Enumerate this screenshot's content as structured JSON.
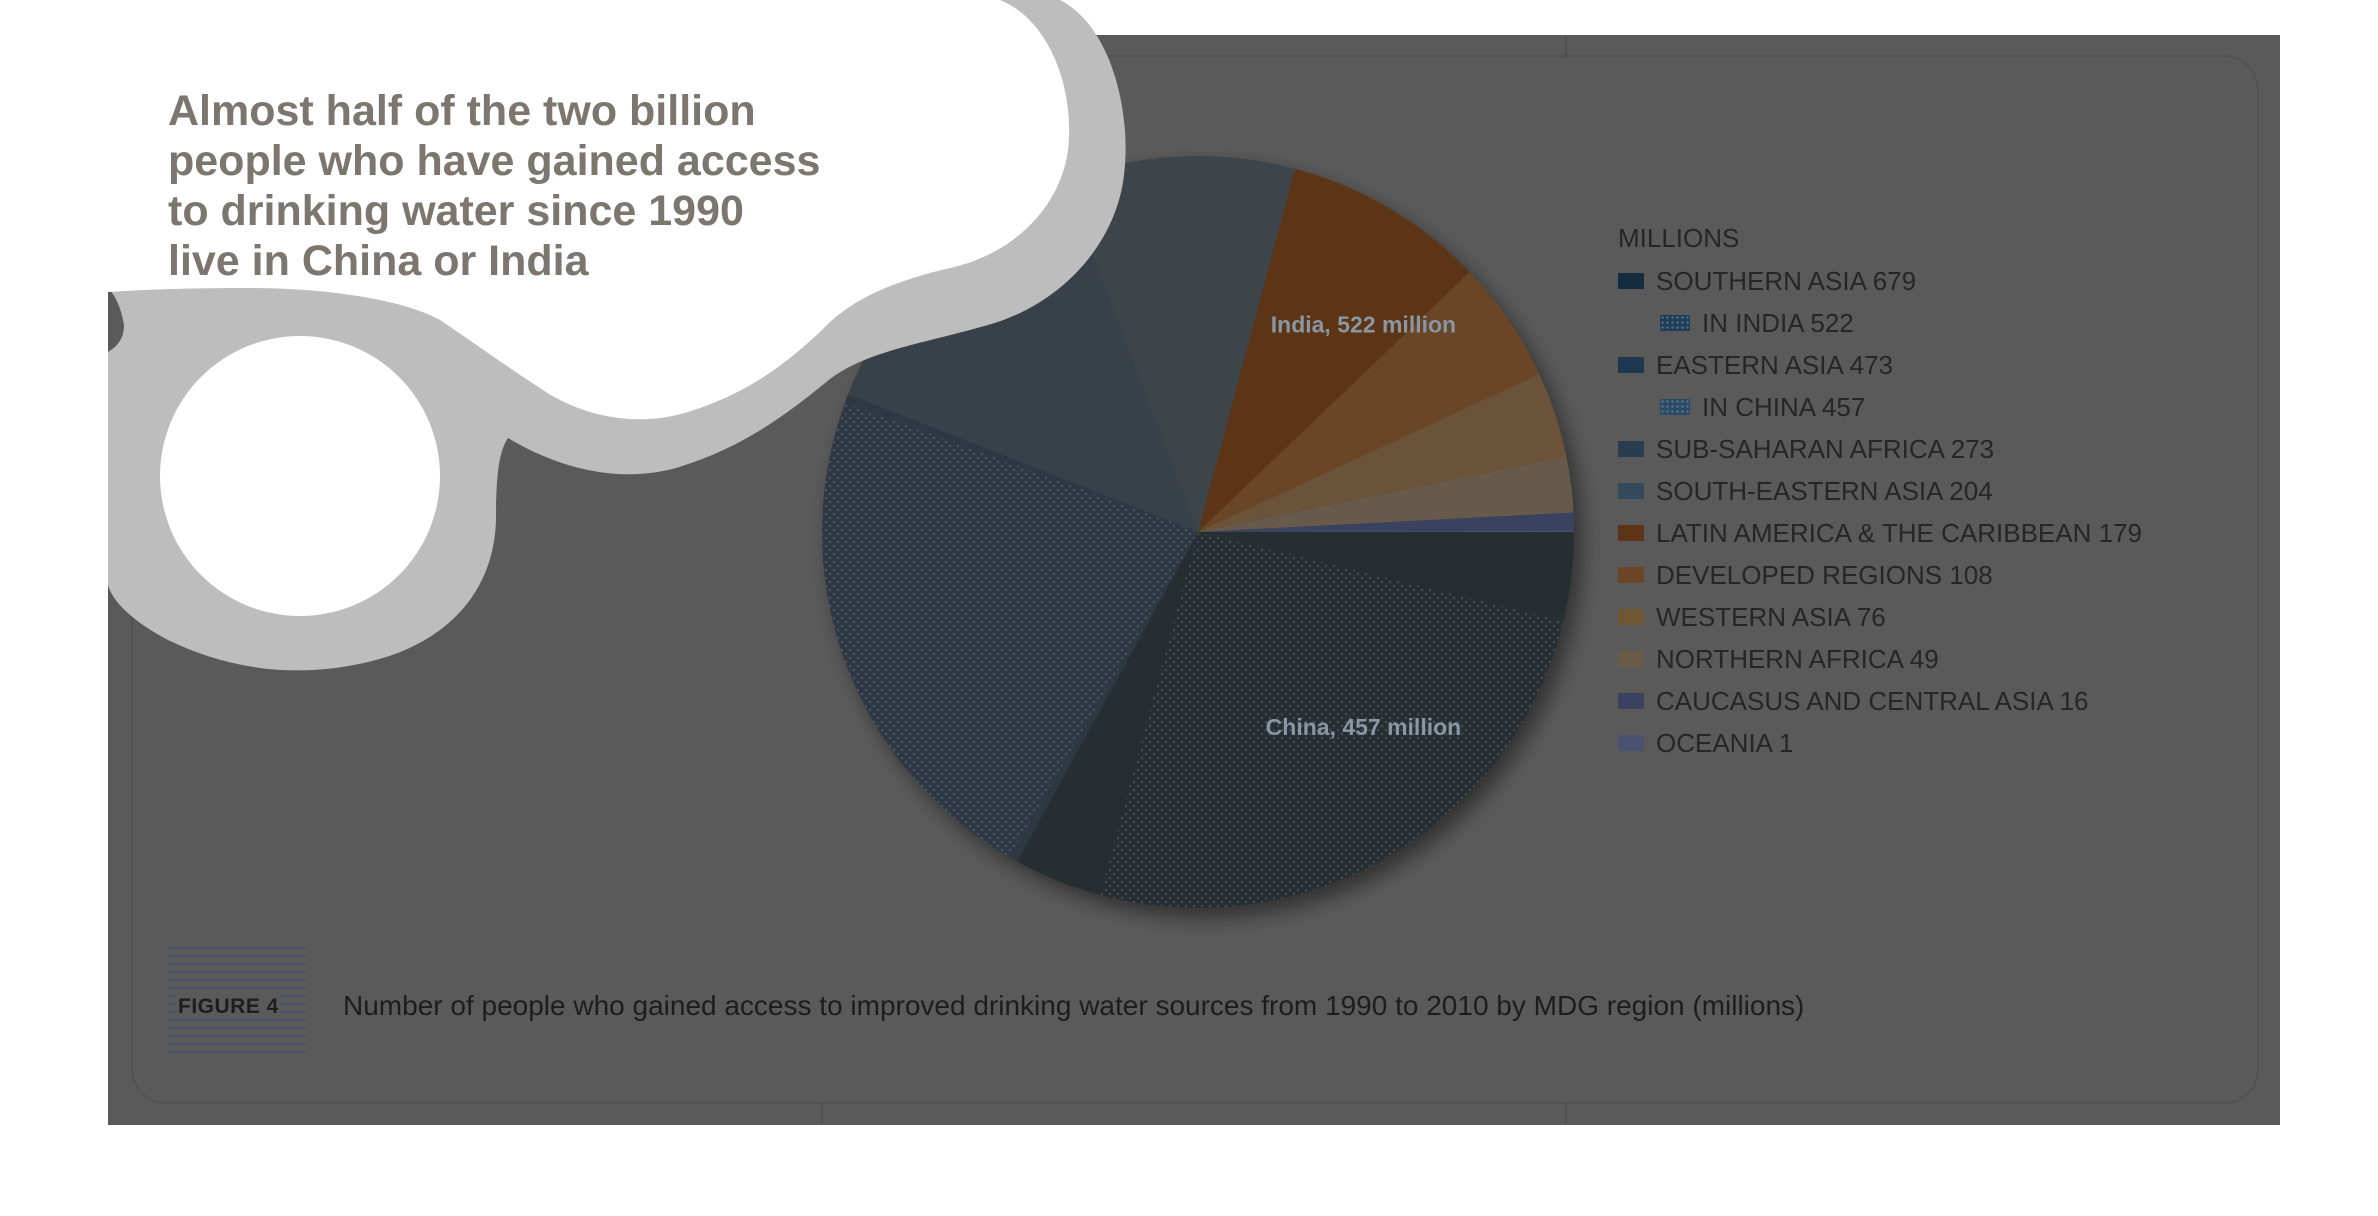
{
  "callout": {
    "lines": [
      "Almost half of the two billion",
      "people who have gained access",
      "to drinking water since 1990",
      "live in China or India"
    ]
  },
  "figure": {
    "label": "FIGURE 4",
    "caption": "Number of people who gained access to improved drinking water sources from 1990 to 2010 by MDG region (millions)"
  },
  "colors": {
    "page_background": "#ffffff",
    "panel_overlay": "#5a5a5a",
    "bubble_ring": "#bdbdbd",
    "bubble_fill": "#ffffff",
    "callout_text": "#7c766e"
  },
  "chart_data": {
    "type": "pie",
    "title": "",
    "units_label": "MILLIONS",
    "slices": [
      {
        "label": "SOUTHERN ASIA 679",
        "value": 679,
        "color": "#142c40",
        "visible_color": "#262d33"
      },
      {
        "label": "EASTERN ASIA 473",
        "value": 473,
        "color": "#1e3850",
        "visible_color": "#2f3842"
      },
      {
        "label": "SUB-SAHARAN AFRICA 273",
        "value": 273,
        "color": "#2a3c50",
        "visible_color": "#37404a"
      },
      {
        "label": "SOUTH-EASTERN ASIA 204",
        "value": 204,
        "color": "#35495c",
        "visible_color": "#3c444c"
      },
      {
        "label": "LATIN AMERICA & THE CARIBBEAN 179",
        "value": 179,
        "color": "#5e3418",
        "visible_color": "#5b3618",
        "highlight_color": "#f4a21e"
      },
      {
        "label": "DEVELOPED REGIONS 108",
        "value": 108,
        "color": "#6a4526",
        "visible_color": "#6a4526",
        "highlight_color": "#f7f36a"
      },
      {
        "label": "WESTERN ASIA 76",
        "value": 76,
        "color": "#6e5534",
        "visible_color": "#6a5238",
        "highlight_color": "#fcf9c8"
      },
      {
        "label": "NORTHERN AFRICA 49",
        "value": 49,
        "color": "#6a5a48",
        "visible_color": "#675a4b",
        "highlight_color": "#ddbe95"
      },
      {
        "label": "CAUCASUS AND CENTRAL ASIA 16",
        "value": 16,
        "color": "#3b4260",
        "visible_color": "#3b4260",
        "highlight_color": "#a7bde2"
      },
      {
        "label": "OCEANIA 1",
        "value": 1,
        "color": "#4a5270",
        "visible_color": "#4a5270",
        "highlight_color": "#c9d6f0"
      }
    ],
    "sub_entries": [
      {
        "label": "IN INDIA 522",
        "value": 522,
        "parent": "SOUTHERN ASIA 679",
        "color": "#1f3d57",
        "pattern": "dotted"
      },
      {
        "label": "IN CHINA 457",
        "value": 457,
        "parent": "EASTERN ASIA 473",
        "color": "#2a4a66",
        "pattern": "dotted"
      }
    ],
    "annotations": [
      "India, 522 million",
      "China, 457 million"
    ],
    "legend_placement": "right",
    "legend": [
      {
        "label": "SOUTHERN ASIA 679",
        "color": "#142c40",
        "sub": false
      },
      {
        "label": "IN INDIA 522",
        "color": "#1f3d57",
        "sub": true
      },
      {
        "label": "EASTERN ASIA 473",
        "color": "#1e3850",
        "sub": false
      },
      {
        "label": "IN CHINA 457",
        "color": "#2a4a66",
        "sub": true
      },
      {
        "label": "SUB-SAHARAN AFRICA 273",
        "color": "#2a3c50",
        "sub": false
      },
      {
        "label": "SOUTH-EASTERN ASIA 204",
        "color": "#35495c",
        "sub": false
      },
      {
        "label": "LATIN AMERICA & THE CARIBBEAN 179",
        "color": "#5e3418",
        "sub": false
      },
      {
        "label": "DEVELOPED REGIONS 108",
        "color": "#6a4526",
        "sub": false
      },
      {
        "label": "WESTERN ASIA 76",
        "color": "#6e5534",
        "sub": false
      },
      {
        "label": "NORTHERN AFRICA 49",
        "color": "#6a5a48",
        "sub": false
      },
      {
        "label": "CAUCASUS AND CENTRAL ASIA 16",
        "color": "#3b4260",
        "sub": false
      },
      {
        "label": "OCEANIA 1",
        "color": "#4a5270",
        "sub": false
      }
    ]
  }
}
